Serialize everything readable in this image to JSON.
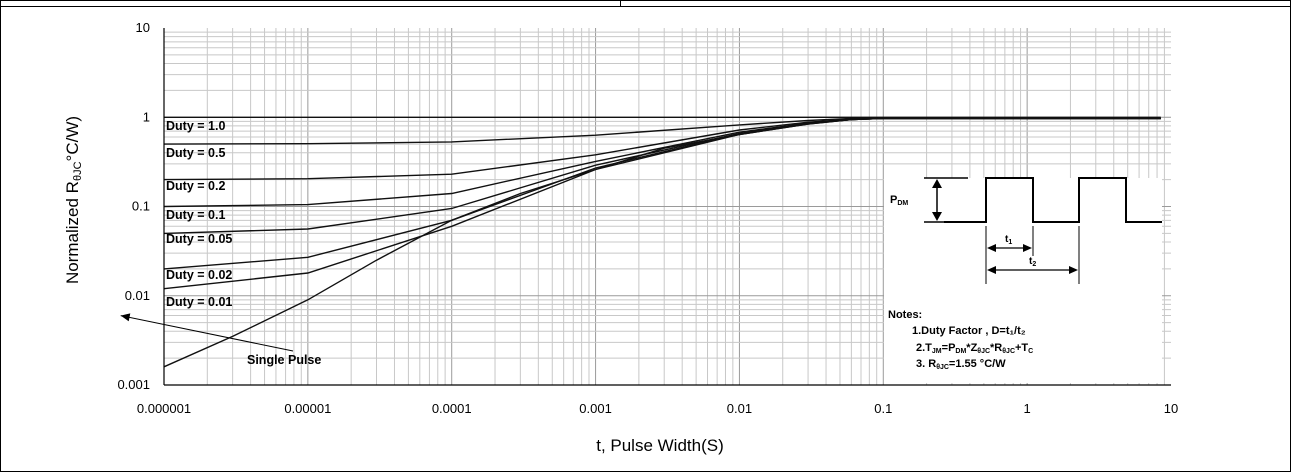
{
  "chart_data": {
    "type": "line",
    "title": "",
    "xlabel": "t, Pulse Width(S)",
    "ylabel_main": "Normalized R",
    "ylabel_sub": "θJC",
    "ylabel_tail": "°C/W)",
    "x_scale": "log",
    "y_scale": "log",
    "xlim": [
      1e-06,
      10
    ],
    "ylim": [
      0.001,
      10
    ],
    "grid": true,
    "x_ticks": [
      {
        "value": 1e-06,
        "label": "0.000001"
      },
      {
        "value": 1e-05,
        "label": "0.00001"
      },
      {
        "value": 0.0001,
        "label": "0.0001"
      },
      {
        "value": 0.001,
        "label": "0.001"
      },
      {
        "value": 0.01,
        "label": "0.01"
      },
      {
        "value": 0.1,
        "label": "0.1"
      },
      {
        "value": 1,
        "label": "1"
      },
      {
        "value": 10,
        "label": "10"
      }
    ],
    "y_ticks": [
      {
        "value": 10,
        "label": "10"
      },
      {
        "value": 1,
        "label": "1"
      },
      {
        "value": 0.1,
        "label": "0.1"
      },
      {
        "value": 0.01,
        "label": "0.01"
      },
      {
        "value": 0.001,
        "label": "0.001"
      }
    ],
    "series": [
      {
        "name": "Duty = 1.0",
        "label_y": 0.8,
        "x": [
          1e-06,
          1e-05,
          0.0001,
          0.001,
          0.01,
          0.1,
          1,
          8.5
        ],
        "y": [
          1,
          1,
          1,
          1,
          1,
          1,
          1,
          1
        ]
      },
      {
        "name": "Duty = 0.5",
        "label_y": 0.4,
        "x": [
          1e-06,
          1e-05,
          0.0001,
          0.001,
          0.01,
          0.03,
          0.06,
          0.1,
          1,
          8.5
        ],
        "y": [
          0.5,
          0.505,
          0.53,
          0.63,
          0.82,
          0.92,
          0.97,
          0.97,
          0.97,
          0.97
        ]
      },
      {
        "name": "Duty = 0.2",
        "label_y": 0.17,
        "x": [
          1e-06,
          1e-05,
          0.0001,
          0.001,
          0.01,
          0.03,
          0.06,
          0.1,
          1,
          8.5
        ],
        "y": [
          0.2,
          0.205,
          0.23,
          0.38,
          0.72,
          0.88,
          0.95,
          0.97,
          0.97,
          0.97
        ]
      },
      {
        "name": "Duty = 0.1",
        "label_y": 0.08,
        "x": [
          1e-06,
          1e-05,
          0.0001,
          0.001,
          0.01,
          0.03,
          0.06,
          0.1,
          1,
          8.5
        ],
        "y": [
          0.1,
          0.105,
          0.14,
          0.32,
          0.68,
          0.86,
          0.94,
          0.97,
          0.97,
          0.97
        ]
      },
      {
        "name": "Duty = 0.05",
        "label_y": 0.043,
        "x": [
          1e-06,
          1e-05,
          0.0001,
          0.001,
          0.01,
          0.03,
          0.06,
          0.1,
          1,
          8.5
        ],
        "y": [
          0.05,
          0.056,
          0.095,
          0.29,
          0.66,
          0.85,
          0.94,
          0.97,
          0.97,
          0.97
        ]
      },
      {
        "name": "Duty = 0.02",
        "label_y": 0.017,
        "x": [
          1e-06,
          1e-05,
          0.0001,
          0.001,
          0.01,
          0.03,
          0.06,
          0.1,
          1,
          8.5
        ],
        "y": [
          0.02,
          0.027,
          0.07,
          0.27,
          0.65,
          0.85,
          0.94,
          0.97,
          0.97,
          0.97
        ]
      },
      {
        "name": "Duty = 0.01",
        "label_y": 0.0085,
        "x": [
          1e-06,
          1e-05,
          0.0001,
          0.001,
          0.01,
          0.03,
          0.06,
          0.1,
          1,
          8.5
        ],
        "y": [
          0.012,
          0.018,
          0.06,
          0.26,
          0.64,
          0.84,
          0.94,
          0.97,
          0.97,
          0.97
        ]
      },
      {
        "name": "Single Pulse",
        "label_y": 0.0022,
        "x": [
          1e-06,
          3e-06,
          1e-05,
          3e-05,
          0.0001,
          0.0003,
          0.001,
          0.003,
          0.01,
          0.03,
          0.06,
          0.1,
          1,
          8.5
        ],
        "y": [
          0.0016,
          0.0035,
          0.009,
          0.025,
          0.07,
          0.14,
          0.26,
          0.45,
          0.64,
          0.84,
          0.94,
          0.97,
          0.97,
          0.97
        ]
      }
    ],
    "annotation": {
      "text": "Single Pulse",
      "arrow_to_x": 5e-07,
      "arrow_to_y": 0.006
    }
  },
  "inset": {
    "pdm_main": "P",
    "pdm_sub": "DM",
    "t1_main": "t",
    "t1_sub": "1",
    "t2_main": "t",
    "t2_sub": "2",
    "notes_title": "Notes:",
    "note1": "1.Duty Factor , D=t₁/t₂",
    "note2_a": "2.T",
    "note2_b": "JM",
    "note2_c": "=P",
    "note2_d": "DM",
    "note2_e": "*Z",
    "note2_f": "θJC",
    "note2_g": "*R",
    "note2_h": "θJC",
    "note2_i": "+T",
    "note2_j": "C",
    "note3_a": "3. R",
    "note3_b": "θJC",
    "note3_c": "=1.55 °C/W"
  }
}
